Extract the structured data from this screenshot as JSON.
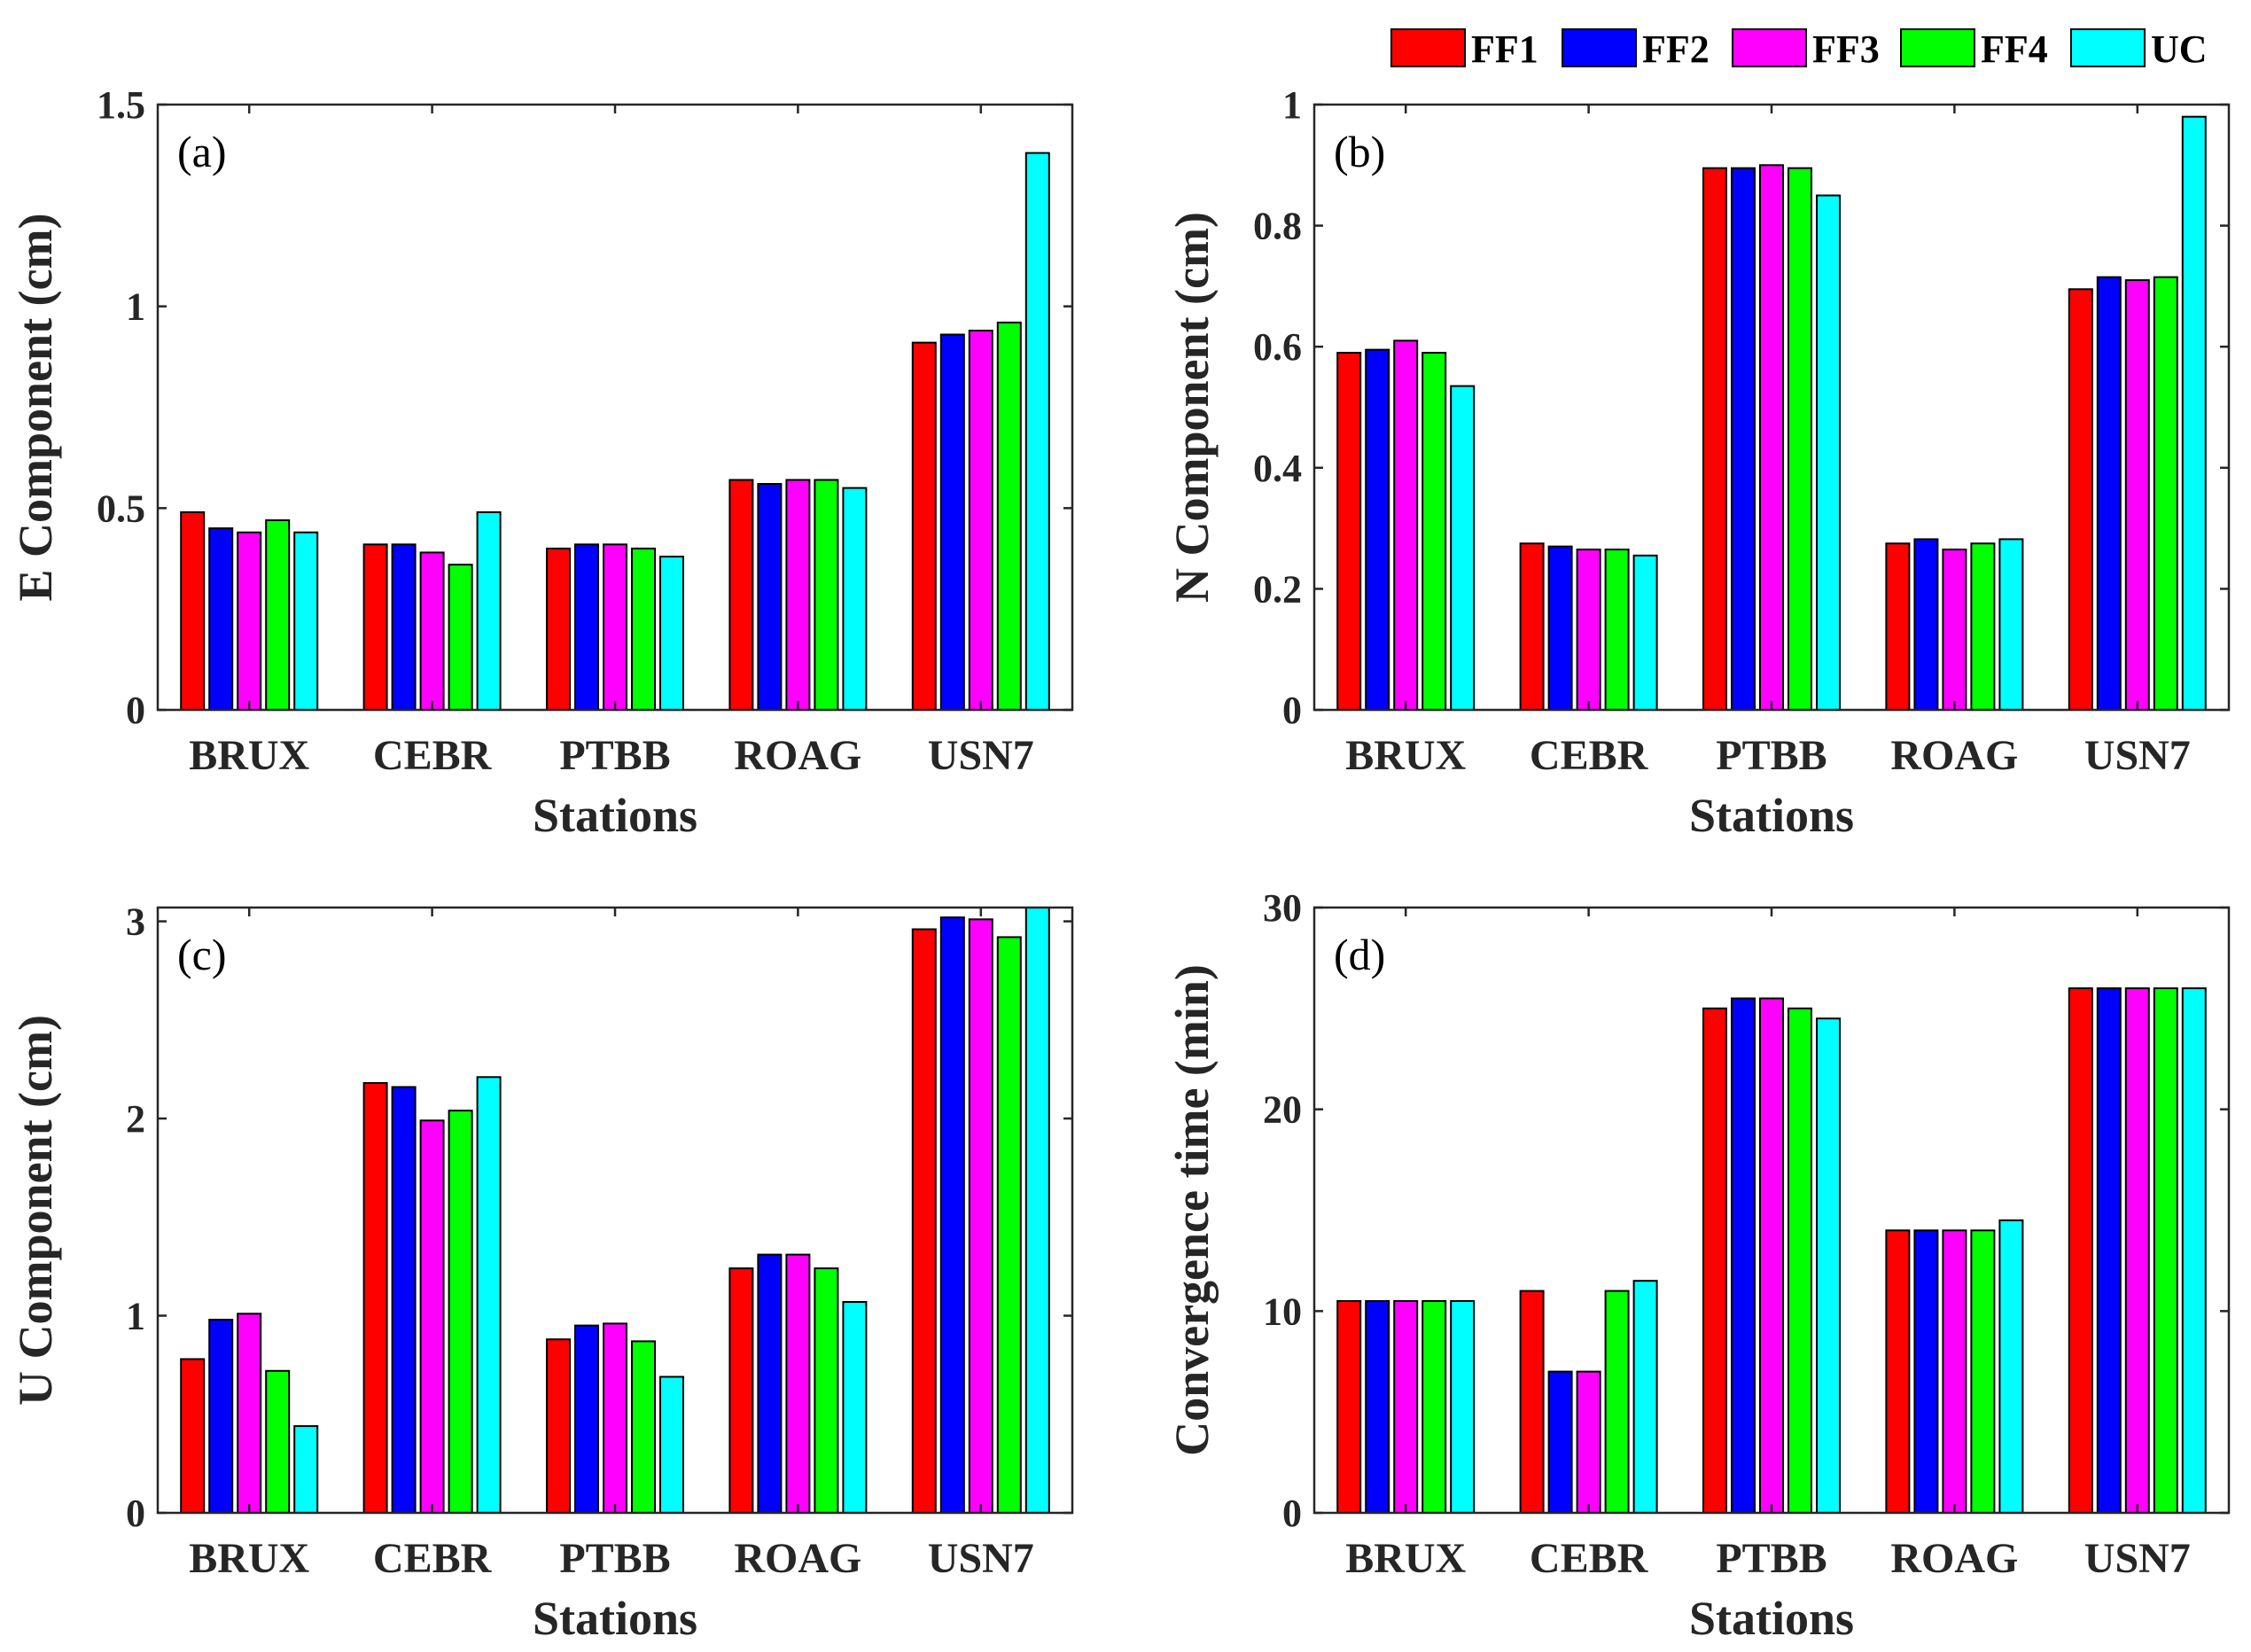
{
  "legend": [
    {
      "name": "FF1",
      "color": "#ff0000"
    },
    {
      "name": "FF2",
      "color": "#0000ff"
    },
    {
      "name": "FF3",
      "color": "#ff00ff"
    },
    {
      "name": "FF4",
      "color": "#00ff00"
    },
    {
      "name": "UC",
      "color": "#00ffff"
    }
  ],
  "chart_data": [
    {
      "type": "bar",
      "panel_label": "(a)",
      "categories": [
        "BRUX",
        "CEBR",
        "PTBB",
        "ROAG",
        "USN7"
      ],
      "xlabel": "Stations",
      "ylabel": "E Component (cm)",
      "ylim": [
        0,
        1.5
      ],
      "yticks": [
        0,
        0.5,
        1,
        1.5
      ],
      "ytick_labels": [
        "0",
        "0.5",
        "1",
        "1.5"
      ],
      "series": [
        {
          "name": "FF1",
          "values": [
            0.49,
            0.41,
            0.4,
            0.57,
            0.91
          ]
        },
        {
          "name": "FF2",
          "values": [
            0.45,
            0.41,
            0.41,
            0.56,
            0.93
          ]
        },
        {
          "name": "FF3",
          "values": [
            0.44,
            0.39,
            0.41,
            0.57,
            0.94
          ]
        },
        {
          "name": "FF4",
          "values": [
            0.47,
            0.36,
            0.4,
            0.57,
            0.96
          ]
        },
        {
          "name": "UC",
          "values": [
            0.44,
            0.49,
            0.38,
            0.55,
            1.38
          ]
        }
      ]
    },
    {
      "type": "bar",
      "panel_label": "(b)",
      "categories": [
        "BRUX",
        "CEBR",
        "PTBB",
        "ROAG",
        "USN7"
      ],
      "xlabel": "Stations",
      "ylabel": "N Component (cm)",
      "ylim": [
        0,
        1
      ],
      "yticks": [
        0,
        0.2,
        0.4,
        0.6,
        0.8,
        1
      ],
      "ytick_labels": [
        "0",
        "0.2",
        "0.4",
        "0.6",
        "0.8",
        "1"
      ],
      "series": [
        {
          "name": "FF1",
          "values": [
            0.59,
            0.275,
            0.895,
            0.275,
            0.695
          ]
        },
        {
          "name": "FF2",
          "values": [
            0.595,
            0.27,
            0.895,
            0.282,
            0.715
          ]
        },
        {
          "name": "FF3",
          "values": [
            0.61,
            0.265,
            0.9,
            0.265,
            0.71
          ]
        },
        {
          "name": "FF4",
          "values": [
            0.59,
            0.265,
            0.895,
            0.275,
            0.715
          ]
        },
        {
          "name": "UC",
          "values": [
            0.535,
            0.255,
            0.85,
            0.282,
            0.98
          ]
        }
      ]
    },
    {
      "type": "bar",
      "panel_label": "(c)",
      "categories": [
        "BRUX",
        "CEBR",
        "PTBB",
        "ROAG",
        "USN7"
      ],
      "xlabel": "Stations",
      "ylabel": "U Component (cm)",
      "ylim": [
        0,
        3.07
      ],
      "yticks": [
        0,
        1,
        2,
        3
      ],
      "ytick_labels": [
        "0",
        "1",
        "2",
        "3"
      ],
      "series": [
        {
          "name": "FF1",
          "values": [
            0.78,
            2.18,
            0.88,
            1.24,
            2.96
          ]
        },
        {
          "name": "FF2",
          "values": [
            0.98,
            2.16,
            0.95,
            1.31,
            3.02
          ]
        },
        {
          "name": "FF3",
          "values": [
            1.01,
            1.99,
            0.96,
            1.31,
            3.01
          ]
        },
        {
          "name": "FF4",
          "values": [
            0.72,
            2.04,
            0.87,
            1.24,
            2.92
          ]
        },
        {
          "name": "UC",
          "values": [
            0.44,
            2.21,
            0.69,
            1.07,
            3.07
          ]
        }
      ]
    },
    {
      "type": "bar",
      "panel_label": "(d)",
      "categories": [
        "BRUX",
        "CEBR",
        "PTBB",
        "ROAG",
        "USN7"
      ],
      "xlabel": "Stations",
      "ylabel": "Convergence time (min)",
      "ylim": [
        0,
        30
      ],
      "yticks": [
        0,
        10,
        20,
        30
      ],
      "ytick_labels": [
        "0",
        "10",
        "20",
        "30"
      ],
      "series": [
        {
          "name": "FF1",
          "values": [
            10.5,
            11,
            25,
            14,
            26
          ]
        },
        {
          "name": "FF2",
          "values": [
            10.5,
            7,
            25.5,
            14,
            26
          ]
        },
        {
          "name": "FF3",
          "values": [
            10.5,
            7,
            25.5,
            14,
            26
          ]
        },
        {
          "name": "FF4",
          "values": [
            10.5,
            11,
            25,
            14,
            26
          ]
        },
        {
          "name": "UC",
          "values": [
            10.5,
            11.5,
            24.5,
            14.5,
            26
          ]
        }
      ]
    }
  ]
}
